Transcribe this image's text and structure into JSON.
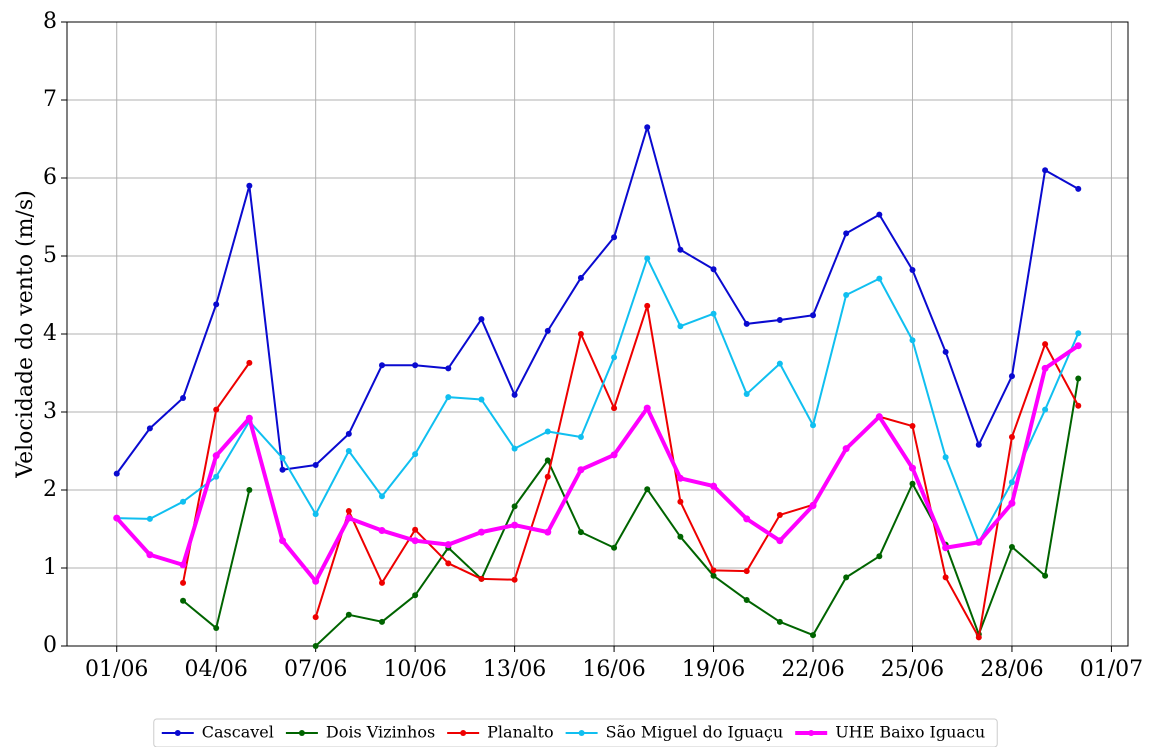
{
  "chart_data": {
    "type": "line",
    "y_label": "Velocidade do vento (m/s)",
    "x": [
      1,
      2,
      3,
      4,
      5,
      6,
      7,
      8,
      9,
      10,
      11,
      12,
      13,
      14,
      15,
      16,
      17,
      18,
      19,
      20,
      21,
      22,
      23,
      24,
      25,
      26,
      27,
      28,
      29,
      30
    ],
    "xlim": [
      -0.5,
      31.5
    ],
    "xticks": [
      {
        "value": 1,
        "label": "01/06"
      },
      {
        "value": 4,
        "label": "04/06"
      },
      {
        "value": 7,
        "label": "07/06"
      },
      {
        "value": 10,
        "label": "10/06"
      },
      {
        "value": 13,
        "label": "13/06"
      },
      {
        "value": 16,
        "label": "16/06"
      },
      {
        "value": 19,
        "label": "19/06"
      },
      {
        "value": 22,
        "label": "22/06"
      },
      {
        "value": 25,
        "label": "25/06"
      },
      {
        "value": 28,
        "label": "28/06"
      },
      {
        "value": 31,
        "label": "01/07"
      }
    ],
    "ylim": [
      0,
      8
    ],
    "yticks": [
      0,
      1,
      2,
      3,
      4,
      5,
      6,
      7,
      8
    ],
    "grid": true,
    "legend": "bottom",
    "series": [
      {
        "name": "Cascavel",
        "color": "#0a0ad0",
        "width": 2,
        "values": [
          2.21,
          2.79,
          3.18,
          4.38,
          5.9,
          2.26,
          2.32,
          2.72,
          3.6,
          3.6,
          3.56,
          4.19,
          3.22,
          4.04,
          4.72,
          5.24,
          6.65,
          5.08,
          4.83,
          4.13,
          4.18,
          4.24,
          5.29,
          5.53,
          4.82,
          3.77,
          2.58,
          3.46,
          6.1,
          5.86
        ]
      },
      {
        "name": "Dois Vizinhos",
        "color": "#006400",
        "width": 2,
        "values": [
          null,
          null,
          0.58,
          0.23,
          2.0,
          null,
          0.0,
          0.4,
          0.31,
          0.65,
          1.26,
          0.86,
          1.79,
          2.38,
          1.46,
          1.26,
          2.01,
          1.4,
          0.9,
          0.59,
          0.31,
          0.14,
          0.88,
          1.15,
          2.08,
          1.3,
          0.15,
          1.27,
          0.9,
          3.43
        ]
      },
      {
        "name": "Planalto",
        "color": "#ee0000",
        "width": 2,
        "values": [
          null,
          null,
          0.81,
          3.03,
          3.63,
          null,
          0.37,
          1.73,
          0.81,
          1.49,
          1.06,
          0.86,
          0.85,
          2.17,
          4.0,
          3.05,
          4.36,
          1.85,
          0.97,
          0.96,
          1.68,
          1.81,
          2.53,
          2.94,
          2.82,
          0.88,
          0.11,
          2.68,
          3.87,
          3.08
        ]
      },
      {
        "name": "São Miguel do Iguaçu",
        "color": "#10bff0",
        "width": 2,
        "values": [
          1.64,
          1.63,
          1.85,
          2.17,
          2.88,
          2.41,
          1.69,
          2.5,
          1.92,
          2.46,
          3.19,
          3.16,
          2.53,
          2.75,
          2.68,
          3.7,
          4.97,
          4.1,
          4.26,
          3.23,
          3.62,
          2.83,
          4.5,
          4.71,
          3.92,
          2.42,
          1.33,
          2.1,
          3.03,
          4.01
        ]
      },
      {
        "name": "UHE Baixo Iguacu",
        "color": "#ff00ff",
        "width": 4,
        "values": [
          1.64,
          1.17,
          1.04,
          2.44,
          2.92,
          1.35,
          0.83,
          1.64,
          1.48,
          1.35,
          1.3,
          1.46,
          1.55,
          1.46,
          2.26,
          2.45,
          3.05,
          2.15,
          2.05,
          1.63,
          1.35,
          1.8,
          2.53,
          2.94,
          2.28,
          1.26,
          1.33,
          1.83,
          3.56,
          3.85
        ]
      }
    ]
  }
}
